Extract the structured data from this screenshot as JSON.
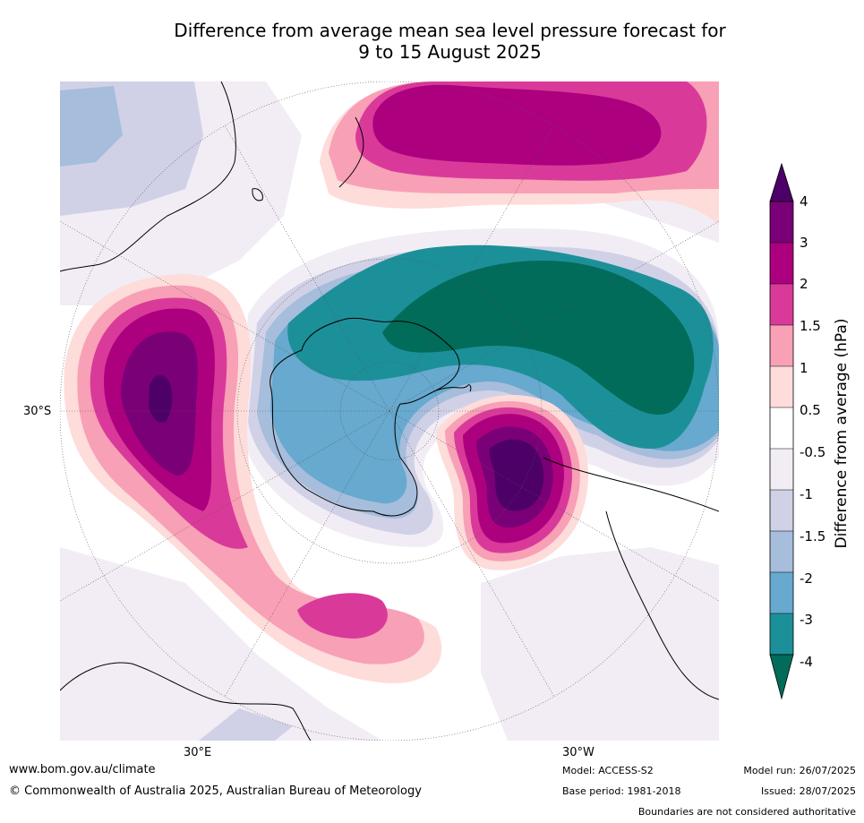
{
  "title_line1": "Difference from average mean sea level pressure forecast for",
  "title_line2": "9 to 15 August 2025",
  "map": {
    "projection": "south polar stereographic",
    "lat_label": "30°S",
    "lon_labels": [
      "30°E",
      "30°W"
    ],
    "features": [
      "Antarctica",
      "Australia",
      "New Zealand",
      "South America",
      "Southern Africa"
    ],
    "anomaly_centres": [
      {
        "region": "South Atlantic / Antarctic Peninsula",
        "value_hPa": 4
      },
      {
        "region": "South-west Indian Ocean",
        "value_hPa": 4
      },
      {
        "region": "Tasman Sea / south of New Zealand",
        "value_hPa": 3
      },
      {
        "region": "South Indian Ocean near Australia",
        "value_hPa": 2
      },
      {
        "region": "Southern Ocean south of Pacific",
        "value_hPa": -4
      }
    ]
  },
  "colorbar": {
    "title": "Difference from average (hPa)",
    "ticks": [
      "4",
      "3",
      "2",
      "1.5",
      "1",
      "0.5",
      "-0.5",
      "-1",
      "-1.5",
      "-2",
      "-3",
      "-4"
    ],
    "colors": [
      "#4c0068",
      "#7a0077",
      "#ad007e",
      "#d93a9a",
      "#f8a0b6",
      "#fddcda",
      "#ffffff",
      "#f2edf5",
      "#d0d1e6",
      "#a6bddb",
      "#67a9cf",
      "#1c9099",
      "#016c59"
    ]
  },
  "footer": {
    "website": "www.bom.gov.au/climate",
    "copyright": "© Commonwealth of Australia 2025, Australian Bureau of Meteorology",
    "model": "Model: ACCESS-S2",
    "base_period": "Base period: 1981-2018",
    "model_run": "Model run: 26/07/2025",
    "issued": "Issued: 28/07/2025",
    "disclaimer": "Boundaries are not considered authoritative"
  }
}
